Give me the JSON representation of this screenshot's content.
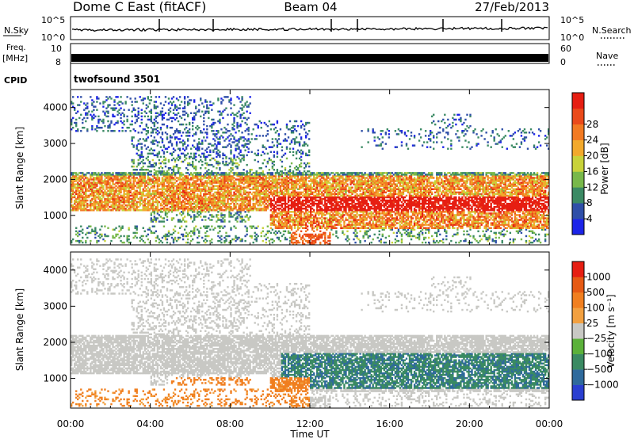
{
  "header": {
    "title": "Dome C East (fitACF)",
    "beam": "Beam 04",
    "date": "27/Feb/2013"
  },
  "strips": {
    "nsky_label": "N.Sky",
    "nsky_ticks": [
      "10^5",
      "10^0"
    ],
    "nsearch_label": "N.Search",
    "nsearch_ticks": [
      "10^5",
      "10^0"
    ],
    "freq_label_line1": "Freq.",
    "freq_label_line2": "[MHz]",
    "freq_ticks": [
      "10",
      "8"
    ],
    "nave_label": "Nave",
    "nave_ticks": [
      "60",
      "0"
    ],
    "cpid_label": "CPID",
    "cpid_value": "twofsound 3501"
  },
  "chart_data": [
    {
      "type": "heatmap",
      "name": "power",
      "ylabel": "Slant Range [km]",
      "yticks": [
        1000,
        2000,
        3000,
        4000
      ],
      "ylim": [
        180,
        4500
      ],
      "xlim": [
        0,
        24
      ],
      "colorbar": {
        "label": "Power [dB]",
        "ticks": [
          "4",
          "8",
          "12",
          "16",
          "20",
          "24",
          "28"
        ],
        "colors": [
          "#1c24e8",
          "#2f4fa8",
          "#3b8a64",
          "#78b84a",
          "#c8d23a",
          "#f2a92c",
          "#f27a22",
          "#ea4a1a",
          "#e61e12"
        ]
      }
    },
    {
      "type": "heatmap",
      "name": "velocity",
      "ylabel": "Slant Range [km]",
      "yticks": [
        1000,
        2000,
        3000,
        4000
      ],
      "ylim": [
        180,
        4500
      ],
      "xlim": [
        0,
        24
      ],
      "xlabel": "Time UT",
      "xticks": [
        "00:00",
        "04:00",
        "08:00",
        "12:00",
        "16:00",
        "20:00",
        "00:00"
      ],
      "colorbar": {
        "label": "Velocity [m s⁻¹]",
        "ticks": [
          "1000",
          "500",
          "100",
          "25",
          "−25",
          "−100",
          "−500",
          "−1000"
        ],
        "colors": [
          "#2a3fd0",
          "#2f6a9c",
          "#3a8a62",
          "#5bb13a",
          "#c8c8c4",
          "#f2a040",
          "#f07f20",
          "#e65a14",
          "#e61e12"
        ]
      }
    }
  ]
}
